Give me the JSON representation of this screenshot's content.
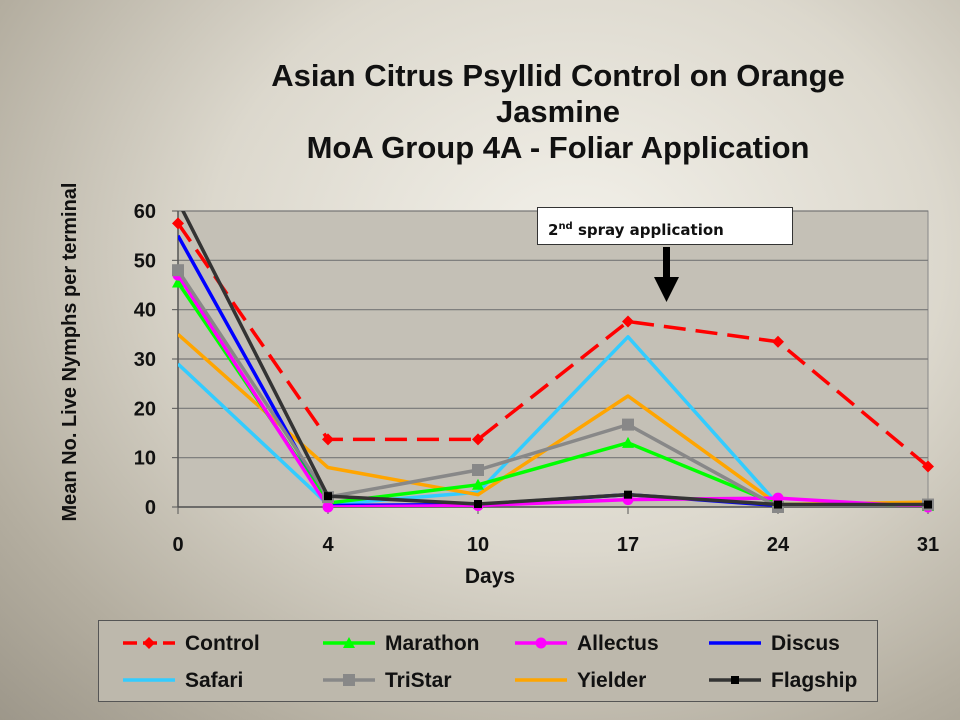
{
  "chart_data": {
    "type": "line",
    "title_lines": [
      "Asian Citrus Psyllid Control on Orange",
      "Jasmine",
      "MoA Group 4A - Foliar Application"
    ],
    "xlabel": "Days",
    "ylabel": "Mean No. Live Nymphs per terminal",
    "x": [
      0,
      4,
      10,
      17,
      24,
      31
    ],
    "x_ticks": [
      "0",
      "4",
      "10",
      "17",
      "24",
      "31"
    ],
    "ylim": [
      0,
      60
    ],
    "y_ticks": [
      "0",
      "10",
      "20",
      "30",
      "40",
      "50",
      "60"
    ],
    "grid": true,
    "legend_position": "bottom",
    "annotation": {
      "text": "2",
      "superscript": "nd",
      "rest": " spray application"
    },
    "series": [
      {
        "name": "Control",
        "color": "#ff0000",
        "dashed": true,
        "marker": "diamond",
        "values": [
          57.5,
          13.7,
          13.7,
          37.6,
          33.5,
          8.2
        ]
      },
      {
        "name": "Marathon",
        "color": "#00ff00",
        "dashed": false,
        "marker": "triangle",
        "values": [
          45.5,
          0.8,
          4.5,
          13.0,
          0.5,
          0.2
        ]
      },
      {
        "name": "Allectus",
        "color": "#ff00ff",
        "dashed": false,
        "marker": "circle",
        "values": [
          47.0,
          0.0,
          0.3,
          1.5,
          1.8,
          0.0
        ]
      },
      {
        "name": "Discus",
        "color": "#0000ff",
        "dashed": false,
        "marker": "none",
        "values": [
          55.0,
          0.3,
          0.5,
          2.5,
          0.3,
          0.3
        ]
      },
      {
        "name": "Safari",
        "color": "#33ccff",
        "dashed": false,
        "marker": "none",
        "values": [
          29.0,
          0.5,
          3.0,
          34.5,
          0.5,
          0.5
        ]
      },
      {
        "name": "TriStar",
        "color": "#888888",
        "dashed": false,
        "marker": "square",
        "values": [
          48.0,
          2.0,
          7.5,
          16.7,
          0.0,
          0.5
        ]
      },
      {
        "name": "Yielder",
        "color": "#ffa500",
        "dashed": false,
        "marker": "none",
        "values": [
          35.0,
          8.0,
          2.5,
          22.5,
          0.5,
          1.0
        ]
      },
      {
        "name": "Flagship",
        "color": "#333333",
        "dashed": false,
        "marker": "smallsquare",
        "values": [
          62.0,
          2.2,
          0.6,
          2.5,
          0.5,
          0.5
        ]
      }
    ]
  }
}
